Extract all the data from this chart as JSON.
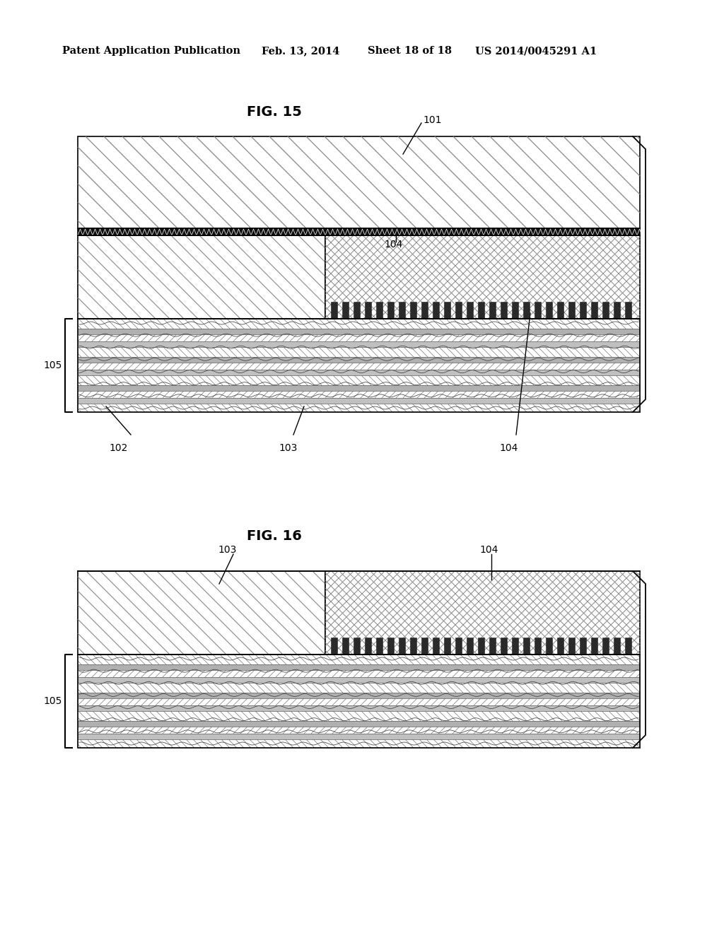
{
  "background_color": "#ffffff",
  "header_text": "Patent Application Publication",
  "header_date": "Feb. 13, 2014",
  "header_sheet": "Sheet 18 of 18",
  "header_patent": "US 2014/0045291 A1",
  "fig15_title": "FIG. 15",
  "fig16_title": "FIG. 16",
  "label_101": "101",
  "label_102": "102",
  "label_103": "103",
  "label_104": "104",
  "label_105": "105",
  "line_color": "#000000"
}
